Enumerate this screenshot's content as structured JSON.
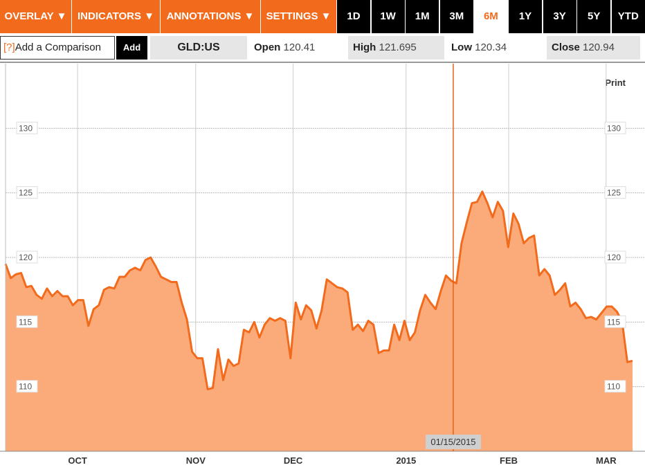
{
  "menus": [
    "OVERLAY ▼",
    "INDICATORS ▼",
    "ANNOTATIONS ▼",
    "SETTINGS ▼"
  ],
  "ranges": [
    "1D",
    "1W",
    "1M",
    "3M",
    "6M",
    "1Y",
    "3Y",
    "5Y",
    "YTD"
  ],
  "active_range": "6M",
  "comparison": {
    "help": "[?]",
    "placeholder": "Add a Comparison",
    "button": "Add"
  },
  "ticker": "GLD:US",
  "quotes": [
    {
      "label": "Open",
      "value": 120.41
    },
    {
      "label": "High",
      "value": 121.695
    },
    {
      "label": "Low",
      "value": 120.34
    },
    {
      "label": "Close",
      "value": 120.94
    }
  ],
  "print": "Print",
  "chart_data": {
    "type": "area",
    "color": "#f26b1d",
    "fill": "#fbab7a",
    "values": [
      119.5,
      118.4,
      118.7,
      118.8,
      117.7,
      117.8,
      117.1,
      116.8,
      117.6,
      117.0,
      117.4,
      117.0,
      117.0,
      116.3,
      116.7,
      116.7,
      114.7,
      116.0,
      116.3,
      117.5,
      117.7,
      117.6,
      118.5,
      118.5,
      119.0,
      119.2,
      119.0,
      119.8,
      120.0,
      119.3,
      118.5,
      118.3,
      118.1,
      118.1,
      116.5,
      115.2,
      112.7,
      112.2,
      112.2,
      109.8,
      109.9,
      112.9,
      110.5,
      112.1,
      111.6,
      111.8,
      114.4,
      114.2,
      115.0,
      113.8,
      114.8,
      115.3,
      115.1,
      115.3,
      115.1,
      112.2,
      116.5,
      115.2,
      116.3,
      115.9,
      114.5,
      115.9,
      118.3,
      118.0,
      117.7,
      117.6,
      117.3,
      114.4,
      114.8,
      114.3,
      115.1,
      114.8,
      112.6,
      112.8,
      112.8,
      114.8,
      113.6,
      115.1,
      113.6,
      114.2,
      115.9,
      117.1,
      116.5,
      116.0,
      117.4,
      118.6,
      118.2,
      118.0,
      121.1,
      122.7,
      124.2,
      124.3,
      125.1,
      124.2,
      123.1,
      124.3,
      123.6,
      120.8,
      123.4,
      122.6,
      121.1,
      121.5,
      121.7,
      118.6,
      119.1,
      118.6,
      117.1,
      117.5,
      118.0,
      116.2,
      116.5,
      116.0,
      115.3,
      115.4,
      115.2,
      115.7,
      116.2,
      116.2,
      115.8,
      115.0,
      111.9,
      112.0
    ],
    "xlim": [
      0,
      121
    ],
    "xticks": [
      {
        "value": 13.9,
        "label": "OCT"
      },
      {
        "value": 36.7,
        "label": "NOV"
      },
      {
        "value": 55.5,
        "label": "DEC"
      },
      {
        "value": 77.3,
        "label": "2015"
      },
      {
        "value": 97.1,
        "label": "FEB"
      },
      {
        "value": 115.9,
        "label": "MAR"
      }
    ],
    "ylim": [
      105,
      135
    ],
    "yticks": [
      110,
      115,
      120,
      125,
      130
    ],
    "grid": true,
    "annotations": [
      {
        "text": "01/15/2015",
        "x": 86.4
      }
    ]
  }
}
